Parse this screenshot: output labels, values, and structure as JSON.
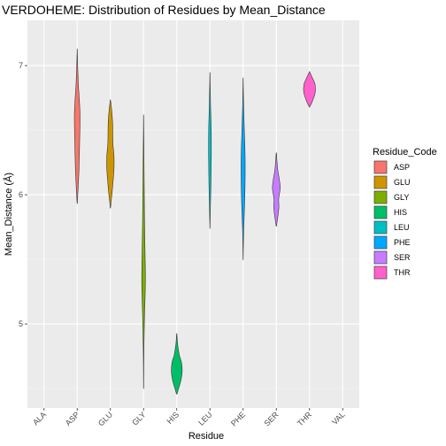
{
  "chart_data": {
    "type": "violin",
    "title": "VERDOHEME: Distribution of Residues by Mean_Distance",
    "xlabel": "Residue",
    "ylabel": "Mean_Distance (Å)",
    "categories": [
      "ALA",
      "ASP",
      "GLU",
      "GLY",
      "HIS",
      "LEU",
      "PHE",
      "SER",
      "THR",
      "VAL"
    ],
    "y_ticks": [
      5,
      6,
      7
    ],
    "ylim": [
      4.35,
      7.35
    ],
    "grid": true,
    "legend": {
      "title": "Residue_Code",
      "position": "right",
      "entries": [
        "ASP",
        "GLU",
        "GLY",
        "HIS",
        "LEU",
        "PHE",
        "SER",
        "THR"
      ]
    },
    "colors": {
      "ASP": "#F8766D",
      "GLU": "#CD9600",
      "GLY": "#7CAE00",
      "HIS": "#00BE67",
      "LEU": "#00BFC4",
      "PHE": "#00A9FF",
      "SER": "#C77CFF",
      "THR": "#FF61CC"
    },
    "violins": [
      {
        "category": "ASP",
        "profile": [
          [
            5.94,
            0.01
          ],
          [
            6.05,
            0.06
          ],
          [
            6.2,
            0.12
          ],
          [
            6.4,
            0.16
          ],
          [
            6.6,
            0.19
          ],
          [
            6.72,
            0.15
          ],
          [
            6.85,
            0.08
          ],
          [
            7.0,
            0.03
          ],
          [
            7.12,
            0.005
          ]
        ]
      },
      {
        "category": "GLU",
        "profile": [
          [
            5.9,
            0.01
          ],
          [
            5.95,
            0.05
          ],
          [
            6.05,
            0.14
          ],
          [
            6.2,
            0.24
          ],
          [
            6.3,
            0.24
          ],
          [
            6.4,
            0.17
          ],
          [
            6.55,
            0.15
          ],
          [
            6.65,
            0.09
          ],
          [
            6.73,
            0.01
          ]
        ]
      },
      {
        "category": "GLY",
        "profile": [
          [
            4.52,
            0.005
          ],
          [
            4.8,
            0.02
          ],
          [
            5.05,
            0.06
          ],
          [
            5.25,
            0.11
          ],
          [
            5.4,
            0.12
          ],
          [
            5.6,
            0.09
          ],
          [
            5.85,
            0.06
          ],
          [
            6.1,
            0.04
          ],
          [
            6.35,
            0.02
          ],
          [
            6.6,
            0.005
          ]
        ]
      },
      {
        "category": "HIS",
        "profile": [
          [
            4.46,
            0.02
          ],
          [
            4.5,
            0.12
          ],
          [
            4.56,
            0.27
          ],
          [
            4.63,
            0.36
          ],
          [
            4.7,
            0.32
          ],
          [
            4.76,
            0.17
          ],
          [
            4.84,
            0.06
          ],
          [
            4.92,
            0.01
          ]
        ]
      },
      {
        "category": "LEU",
        "profile": [
          [
            5.75,
            0.005
          ],
          [
            5.9,
            0.03
          ],
          [
            6.1,
            0.07
          ],
          [
            6.3,
            0.09
          ],
          [
            6.5,
            0.085
          ],
          [
            6.7,
            0.04
          ],
          [
            6.85,
            0.015
          ],
          [
            6.94,
            0.005
          ]
        ]
      },
      {
        "category": "PHE",
        "profile": [
          [
            5.51,
            0.005
          ],
          [
            5.7,
            0.03
          ],
          [
            5.9,
            0.09
          ],
          [
            6.1,
            0.13
          ],
          [
            6.3,
            0.13
          ],
          [
            6.5,
            0.08
          ],
          [
            6.7,
            0.03
          ],
          [
            6.89,
            0.005
          ]
        ]
      },
      {
        "category": "SER",
        "profile": [
          [
            5.76,
            0.01
          ],
          [
            5.82,
            0.09
          ],
          [
            5.9,
            0.17
          ],
          [
            5.97,
            0.16
          ],
          [
            6.05,
            0.26
          ],
          [
            6.12,
            0.2
          ],
          [
            6.18,
            0.11
          ],
          [
            6.25,
            0.05
          ],
          [
            6.32,
            0.01
          ]
        ]
      },
      {
        "category": "THR",
        "profile": [
          [
            6.68,
            0.01
          ],
          [
            6.72,
            0.18
          ],
          [
            6.78,
            0.36
          ],
          [
            6.82,
            0.4
          ],
          [
            6.86,
            0.36
          ],
          [
            6.9,
            0.21
          ],
          [
            6.95,
            0.01
          ]
        ]
      }
    ]
  }
}
